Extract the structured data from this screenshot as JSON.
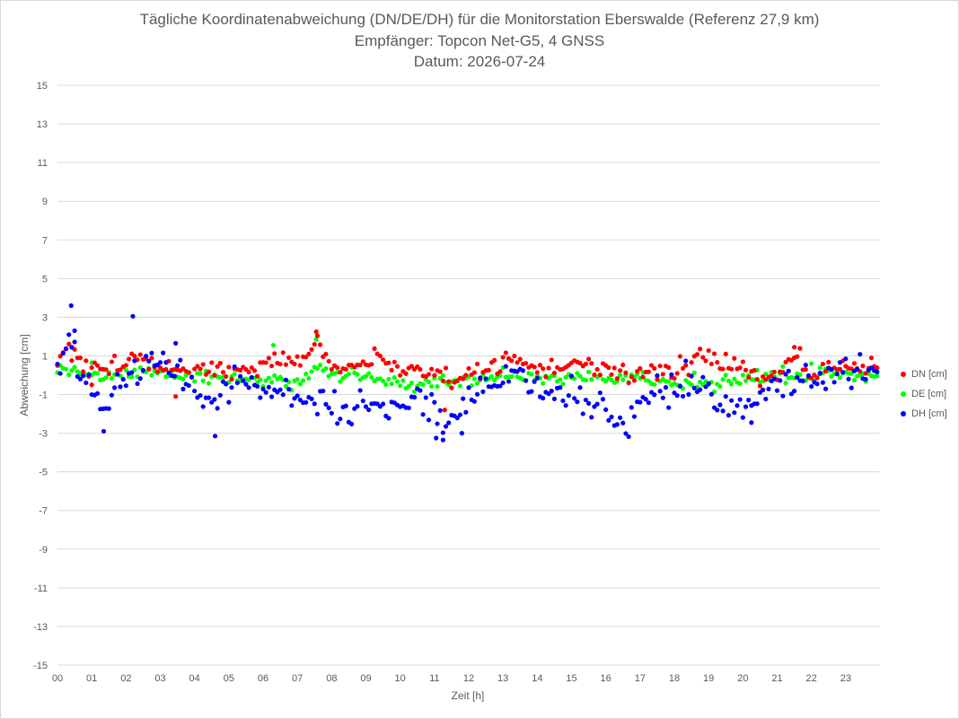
{
  "chart_data": {
    "type": "scatter",
    "title_lines": [
      "Tägliche Koordinatenabweichung (DN/DE/DH) für die Monitorstation Eberswalde (Referenz 27,9 km)",
      "Empfänger: Topcon Net-G5, 4 GNSS",
      "Datum: 2026-07-24"
    ],
    "xlabel": "Zeit [h]",
    "ylabel": "Abweichung [cm]",
    "xlim": [
      0,
      24
    ],
    "ylim": [
      -15,
      15
    ],
    "x_ticks": [
      "00",
      "01",
      "02",
      "03",
      "04",
      "05",
      "06",
      "07",
      "08",
      "09",
      "10",
      "11",
      "12",
      "13",
      "14",
      "15",
      "16",
      "17",
      "18",
      "19",
      "20",
      "21",
      "22",
      "23"
    ],
    "y_ticks": [
      15,
      13,
      11,
      9,
      7,
      5,
      3,
      1,
      -1,
      -3,
      -5,
      -7,
      -9,
      -11,
      -13,
      -15
    ],
    "grid": "horizontal",
    "legend_position": "right",
    "series": [
      {
        "name": "DN [cm]",
        "color": "#ff0000"
      },
      {
        "name": "DE [cm]",
        "color": "#00ff00"
      },
      {
        "name": "DH [cm]",
        "color": "#0000ff"
      }
    ],
    "sampling": "288 Messwerte pro Reihe (5-Minuten-Intervall, 00:00–23:55)",
    "profiles": {
      "DN": {
        "knots": [
          [
            0,
            0.4
          ],
          [
            0.3,
            1.6
          ],
          [
            0.6,
            0.7
          ],
          [
            1,
            0.2
          ],
          [
            1.5,
            0.3
          ],
          [
            2,
            0.5
          ],
          [
            2.3,
            1.2
          ],
          [
            3,
            0.4
          ],
          [
            3.5,
            0.5
          ],
          [
            4,
            0.2
          ],
          [
            4.5,
            0.2
          ],
          [
            5,
            0.2
          ],
          [
            6,
            0.6
          ],
          [
            6.8,
            0.7
          ],
          [
            7.4,
            1.0
          ],
          [
            7.6,
            1.8
          ],
          [
            8,
            0.6
          ],
          [
            9,
            0.5
          ],
          [
            9.3,
            0.9
          ],
          [
            10,
            0.3
          ],
          [
            11,
            0.1
          ],
          [
            11.5,
            -0.2
          ],
          [
            12,
            0.1
          ],
          [
            12.5,
            0.3
          ],
          [
            13,
            0.7
          ],
          [
            13.3,
            0.9
          ],
          [
            14,
            0.2
          ],
          [
            15,
            0.5
          ],
          [
            15.5,
            0.5
          ],
          [
            16,
            0.1
          ],
          [
            17,
            0.1
          ],
          [
            18,
            0.3
          ],
          [
            18.5,
            0.8
          ],
          [
            19,
            1.0
          ],
          [
            19.5,
            0.6
          ],
          [
            20,
            0.3
          ],
          [
            20.5,
            -0.2
          ],
          [
            21,
            0.2
          ],
          [
            21.5,
            1.0
          ],
          [
            22,
            0.2
          ],
          [
            23,
            0.5
          ],
          [
            24,
            0.5
          ]
        ],
        "noise": 0.25
      },
      "DE": {
        "knots": [
          [
            0,
            0.1
          ],
          [
            0.5,
            0.2
          ],
          [
            1,
            0.0
          ],
          [
            2,
            0.1
          ],
          [
            3,
            0.1
          ],
          [
            4,
            -0.1
          ],
          [
            5,
            -0.2
          ],
          [
            6,
            -0.3
          ],
          [
            7,
            -0.4
          ],
          [
            7.5,
            0.3
          ],
          [
            8,
            0.0
          ],
          [
            9,
            0.0
          ],
          [
            10,
            -0.5
          ],
          [
            11,
            -0.4
          ],
          [
            12,
            -0.3
          ],
          [
            13,
            0.0
          ],
          [
            14,
            -0.1
          ],
          [
            15,
            -0.1
          ],
          [
            16,
            -0.1
          ],
          [
            17,
            -0.2
          ],
          [
            18,
            -0.2
          ],
          [
            19,
            -0.4
          ],
          [
            20,
            -0.2
          ],
          [
            21,
            0.0
          ],
          [
            22,
            0.0
          ],
          [
            23,
            0.0
          ],
          [
            24,
            0.0
          ]
        ],
        "noise": 0.2
      },
      "DH": {
        "knots": [
          [
            0,
            0.0
          ],
          [
            0.3,
            2.0
          ],
          [
            0.5,
            1.2
          ],
          [
            1,
            -0.5
          ],
          [
            1.3,
            -1.5
          ],
          [
            1.6,
            -0.8
          ],
          [
            2,
            -0.2
          ],
          [
            2.5,
            0.3
          ],
          [
            3,
            0.6
          ],
          [
            3.5,
            0.0
          ],
          [
            4,
            -0.8
          ],
          [
            4.5,
            -1.2
          ],
          [
            5,
            -0.3
          ],
          [
            5.5,
            -0.5
          ],
          [
            6,
            -0.8
          ],
          [
            6.5,
            -1.0
          ],
          [
            7,
            -1.0
          ],
          [
            7.5,
            -1.3
          ],
          [
            8,
            -1.6
          ],
          [
            8.5,
            -2.0
          ],
          [
            9,
            -1.3
          ],
          [
            9.5,
            -1.8
          ],
          [
            10,
            -1.4
          ],
          [
            10.5,
            -1.2
          ],
          [
            11,
            -1.8
          ],
          [
            11.3,
            -2.6
          ],
          [
            11.6,
            -2.0
          ],
          [
            12,
            -1.2
          ],
          [
            12.5,
            -0.8
          ],
          [
            13,
            -0.2
          ],
          [
            13.5,
            0.2
          ],
          [
            14,
            -0.5
          ],
          [
            14.5,
            -1.0
          ],
          [
            15,
            -1.2
          ],
          [
            15.3,
            -2.0
          ],
          [
            15.7,
            -1.2
          ],
          [
            16,
            -1.6
          ],
          [
            16.5,
            -2.6
          ],
          [
            17,
            -1.2
          ],
          [
            17.5,
            -1.0
          ],
          [
            18,
            -0.8
          ],
          [
            18.5,
            -0.5
          ],
          [
            19,
            -1.0
          ],
          [
            19.3,
            -1.6
          ],
          [
            19.7,
            -1.4
          ],
          [
            20,
            -1.8
          ],
          [
            20.5,
            -0.8
          ],
          [
            21,
            -0.6
          ],
          [
            21.5,
            -0.4
          ],
          [
            22,
            -0.2
          ],
          [
            22.5,
            0.0
          ],
          [
            23,
            0.3
          ],
          [
            23.5,
            0.3
          ],
          [
            24,
            0.3
          ]
        ],
        "noise": 0.45
      }
    },
    "outliers": {
      "DN": [
        [
          1.0,
          -0.5
        ],
        [
          3.45,
          -1.1
        ],
        [
          11.3,
          -1.8
        ],
        [
          7.55,
          2.25
        ],
        [
          21.5,
          1.45
        ]
      ],
      "DE": [
        [
          6.3,
          1.55
        ],
        [
          7.55,
          1.85
        ],
        [
          1.0,
          0.65
        ]
      ],
      "DH": [
        [
          0.4,
          3.6
        ],
        [
          2.2,
          3.05
        ],
        [
          4.6,
          -3.15
        ],
        [
          1.35,
          -2.9
        ],
        [
          11.05,
          -3.25
        ],
        [
          11.25,
          -3.35
        ],
        [
          11.8,
          -3.0
        ],
        [
          3.45,
          1.65
        ],
        [
          0.5,
          2.3
        ],
        [
          20.25,
          -2.45
        ]
      ]
    }
  }
}
